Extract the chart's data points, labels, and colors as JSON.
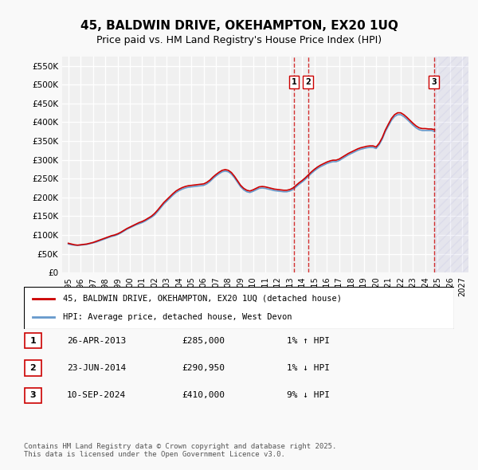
{
  "title": "45, BALDWIN DRIVE, OKEHAMPTON, EX20 1UQ",
  "subtitle": "Price paid vs. HM Land Registry's House Price Index (HPI)",
  "ylabel_ticks": [
    "£0",
    "£50K",
    "£100K",
    "£150K",
    "£200K",
    "£250K",
    "£300K",
    "£350K",
    "£400K",
    "£450K",
    "£500K",
    "£550K"
  ],
  "ytick_values": [
    0,
    50000,
    100000,
    150000,
    200000,
    250000,
    300000,
    350000,
    400000,
    450000,
    500000,
    550000
  ],
  "ylim": [
    0,
    575000
  ],
  "xlim_start": 1994.5,
  "xlim_end": 2027.5,
  "xticks": [
    1995,
    1996,
    1997,
    1998,
    1999,
    2000,
    2001,
    2002,
    2003,
    2004,
    2005,
    2006,
    2007,
    2008,
    2009,
    2010,
    2011,
    2012,
    2013,
    2014,
    2015,
    2016,
    2017,
    2018,
    2019,
    2020,
    2021,
    2022,
    2023,
    2024,
    2025,
    2026,
    2027
  ],
  "bg_color": "#f0f0f0",
  "grid_color": "#ffffff",
  "hpi_color": "#6699cc",
  "price_color": "#cc0000",
  "hatch_color": "#aaaadd",
  "sale_markers": [
    {
      "year": 2013.32,
      "price": 285000,
      "label": "1",
      "vline_x": 2013.32
    },
    {
      "year": 2014.48,
      "price": 290950,
      "label": "2",
      "vline_x": 2014.48
    },
    {
      "year": 2024.7,
      "price": 410000,
      "label": "3",
      "vline_x": 2024.7
    }
  ],
  "legend_items": [
    {
      "label": "45, BALDWIN DRIVE, OKEHAMPTON, EX20 1UQ (detached house)",
      "color": "#cc0000"
    },
    {
      "label": "HPI: Average price, detached house, West Devon",
      "color": "#6699cc"
    }
  ],
  "table_rows": [
    {
      "num": "1",
      "date": "26-APR-2013",
      "price": "£285,000",
      "hpi": "1% ↑ HPI"
    },
    {
      "num": "2",
      "date": "23-JUN-2014",
      "price": "£290,950",
      "hpi": "1% ↓ HPI"
    },
    {
      "num": "3",
      "date": "10-SEP-2024",
      "price": "£410,000",
      "hpi": "9% ↓ HPI"
    }
  ],
  "footer": "Contains HM Land Registry data © Crown copyright and database right 2025.\nThis data is licensed under the Open Government Licence v3.0.",
  "hpi_data_x": [
    1995.0,
    1995.25,
    1995.5,
    1995.75,
    1996.0,
    1996.25,
    1996.5,
    1996.75,
    1997.0,
    1997.25,
    1997.5,
    1997.75,
    1998.0,
    1998.25,
    1998.5,
    1998.75,
    1999.0,
    1999.25,
    1999.5,
    1999.75,
    2000.0,
    2000.25,
    2000.5,
    2000.75,
    2001.0,
    2001.25,
    2001.5,
    2001.75,
    2002.0,
    2002.25,
    2002.5,
    2002.75,
    2003.0,
    2003.25,
    2003.5,
    2003.75,
    2004.0,
    2004.25,
    2004.5,
    2004.75,
    2005.0,
    2005.25,
    2005.5,
    2005.75,
    2006.0,
    2006.25,
    2006.5,
    2006.75,
    2007.0,
    2007.25,
    2007.5,
    2007.75,
    2008.0,
    2008.25,
    2008.5,
    2008.75,
    2009.0,
    2009.25,
    2009.5,
    2009.75,
    2010.0,
    2010.25,
    2010.5,
    2010.75,
    2011.0,
    2011.25,
    2011.5,
    2011.75,
    2012.0,
    2012.25,
    2012.5,
    2012.75,
    2013.0,
    2013.25,
    2013.5,
    2013.75,
    2014.0,
    2014.25,
    2014.5,
    2014.75,
    2015.0,
    2015.25,
    2015.5,
    2015.75,
    2016.0,
    2016.25,
    2016.5,
    2016.75,
    2017.0,
    2017.25,
    2017.5,
    2017.75,
    2018.0,
    2018.25,
    2018.5,
    2018.75,
    2019.0,
    2019.25,
    2019.5,
    2019.75,
    2020.0,
    2020.25,
    2020.5,
    2020.75,
    2021.0,
    2021.25,
    2021.5,
    2021.75,
    2022.0,
    2022.25,
    2022.5,
    2022.75,
    2023.0,
    2023.25,
    2023.5,
    2023.75,
    2024.0,
    2024.25,
    2024.5,
    2024.75
  ],
  "hpi_data_y": [
    76000,
    74000,
    73000,
    72500,
    73000,
    74000,
    75000,
    77000,
    79000,
    81000,
    84000,
    87000,
    90000,
    93000,
    96000,
    98000,
    101000,
    105000,
    110000,
    115000,
    119000,
    123000,
    127000,
    130000,
    133000,
    137000,
    142000,
    147000,
    153000,
    162000,
    172000,
    182000,
    190000,
    198000,
    206000,
    213000,
    218000,
    222000,
    225000,
    227000,
    228000,
    229000,
    230000,
    231000,
    232000,
    236000,
    242000,
    250000,
    257000,
    263000,
    268000,
    270000,
    268000,
    262000,
    252000,
    240000,
    228000,
    220000,
    215000,
    213000,
    216000,
    220000,
    224000,
    225000,
    224000,
    222000,
    220000,
    218000,
    217000,
    216000,
    215000,
    215000,
    217000,
    221000,
    228000,
    235000,
    241000,
    248000,
    256000,
    264000,
    271000,
    277000,
    282000,
    286000,
    290000,
    293000,
    295000,
    295000,
    298000,
    303000,
    308000,
    313000,
    317000,
    321000,
    325000,
    328000,
    330000,
    332000,
    333000,
    333000,
    330000,
    340000,
    355000,
    375000,
    390000,
    405000,
    415000,
    420000,
    420000,
    415000,
    408000,
    400000,
    392000,
    385000,
    380000,
    378000,
    378000,
    378000,
    378000,
    375000
  ],
  "price_data_x": [
    1995.0,
    1995.25,
    1995.5,
    1995.75,
    1996.0,
    1996.25,
    1996.5,
    1996.75,
    1997.0,
    1997.25,
    1997.5,
    1997.75,
    1998.0,
    1998.25,
    1998.5,
    1998.75,
    1999.0,
    1999.25,
    1999.5,
    1999.75,
    2000.0,
    2000.25,
    2000.5,
    2000.75,
    2001.0,
    2001.25,
    2001.5,
    2001.75,
    2002.0,
    2002.25,
    2002.5,
    2002.75,
    2003.0,
    2003.25,
    2003.5,
    2003.75,
    2004.0,
    2004.25,
    2004.5,
    2004.75,
    2005.0,
    2005.25,
    2005.5,
    2005.75,
    2006.0,
    2006.25,
    2006.5,
    2006.75,
    2007.0,
    2007.25,
    2007.5,
    2007.75,
    2008.0,
    2008.25,
    2008.5,
    2008.75,
    2009.0,
    2009.25,
    2009.5,
    2009.75,
    2010.0,
    2010.25,
    2010.5,
    2010.75,
    2011.0,
    2011.25,
    2011.5,
    2011.75,
    2012.0,
    2012.25,
    2012.5,
    2012.75,
    2013.0,
    2013.25,
    2013.5,
    2013.75,
    2014.0,
    2014.25,
    2014.5,
    2014.75,
    2015.0,
    2015.25,
    2015.5,
    2015.75,
    2016.0,
    2016.25,
    2016.5,
    2016.75,
    2017.0,
    2017.25,
    2017.5,
    2017.75,
    2018.0,
    2018.25,
    2018.5,
    2018.75,
    2019.0,
    2019.25,
    2019.5,
    2019.75,
    2020.0,
    2020.25,
    2020.5,
    2020.75,
    2021.0,
    2021.25,
    2021.5,
    2021.75,
    2022.0,
    2022.25,
    2022.5,
    2022.75,
    2023.0,
    2023.25,
    2023.5,
    2023.75,
    2024.0,
    2024.25,
    2024.5,
    2024.75
  ],
  "price_data_y": [
    78000,
    76000,
    74000,
    73000,
    74000,
    75000,
    76000,
    78000,
    80000,
    83000,
    86000,
    89000,
    92000,
    95000,
    98000,
    100000,
    103000,
    107000,
    112000,
    117000,
    121000,
    125000,
    129000,
    133000,
    136000,
    140000,
    145000,
    150000,
    157000,
    166000,
    176000,
    186000,
    194000,
    202000,
    210000,
    217000,
    222000,
    226000,
    229000,
    231000,
    232000,
    233000,
    234000,
    235000,
    236000,
    240000,
    246000,
    254000,
    261000,
    267000,
    272000,
    274000,
    272000,
    266000,
    256000,
    244000,
    232000,
    224000,
    219000,
    217000,
    220000,
    224000,
    228000,
    229000,
    228000,
    226000,
    224000,
    222000,
    221000,
    220000,
    219000,
    219000,
    221000,
    225000,
    232000,
    239000,
    245000,
    252000,
    260000,
    268000,
    275000,
    281000,
    286000,
    290000,
    294000,
    297000,
    299000,
    299000,
    302000,
    307000,
    312000,
    317000,
    321000,
    325000,
    329000,
    332000,
    334000,
    336000,
    337000,
    337000,
    334000,
    344000,
    359000,
    379000,
    395000,
    410000,
    420000,
    425000,
    425000,
    420000,
    413000,
    405000,
    397000,
    390000,
    385000,
    383000,
    383000,
    382000,
    382000,
    380000
  ],
  "hatch_start": 2024.7,
  "hatch_end": 2027.5
}
